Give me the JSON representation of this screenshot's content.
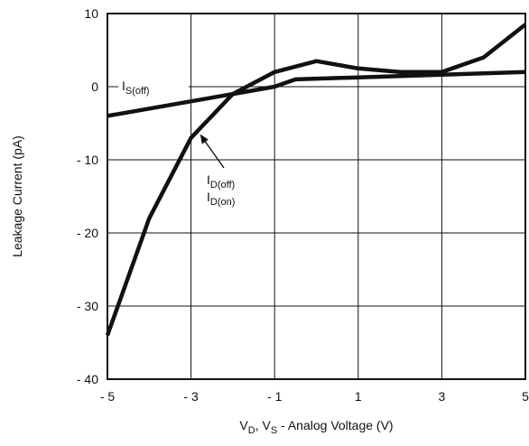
{
  "chart_data": {
    "type": "line",
    "title": "",
    "xlabel": {
      "parts": [
        {
          "t": "V"
        },
        {
          "t": "D",
          "sub": true
        },
        {
          "t": ", V"
        },
        {
          "t": "S",
          "sub": true
        },
        {
          "t": " - Analog Voltage (V)"
        }
      ]
    },
    "ylabel": "Leakage Current (pA)",
    "xlim": [
      -5,
      5
    ],
    "ylim": [
      -40,
      10
    ],
    "grid": true,
    "x_ticks": [
      -5,
      -3,
      -1,
      1,
      3,
      5
    ],
    "x_tick_labels": [
      "- 5",
      "- 3",
      "- 1",
      "1",
      "3",
      "5"
    ],
    "y_ticks": [
      10,
      0,
      -10,
      -20,
      -30,
      -40
    ],
    "y_tick_labels": [
      "10",
      "0",
      "- 10",
      "- 20",
      "- 30",
      "- 40"
    ],
    "series": [
      {
        "name": "I_S(off)",
        "label": {
          "parts": [
            {
              "t": "I"
            },
            {
              "t": "S(off)",
              "sub": true
            }
          ]
        },
        "x": [
          -5,
          -1,
          -0.5,
          5
        ],
        "y": [
          -4,
          0,
          1,
          2
        ]
      },
      {
        "name": "I_D(off), I_D(on)",
        "label_lines": [
          {
            "parts": [
              {
                "t": "I"
              },
              {
                "t": "D(off)",
                "sub": true
              }
            ]
          },
          {
            "parts": [
              {
                "t": "I"
              },
              {
                "t": "D(on)",
                "sub": true
              }
            ]
          }
        ],
        "x": [
          -5,
          -4,
          -3,
          -2,
          -1,
          0,
          1,
          2,
          3,
          4,
          5
        ],
        "y": [
          -34,
          -18,
          -7,
          -1,
          2,
          3.5,
          2.5,
          2,
          2,
          4,
          8.5
        ]
      }
    ]
  }
}
